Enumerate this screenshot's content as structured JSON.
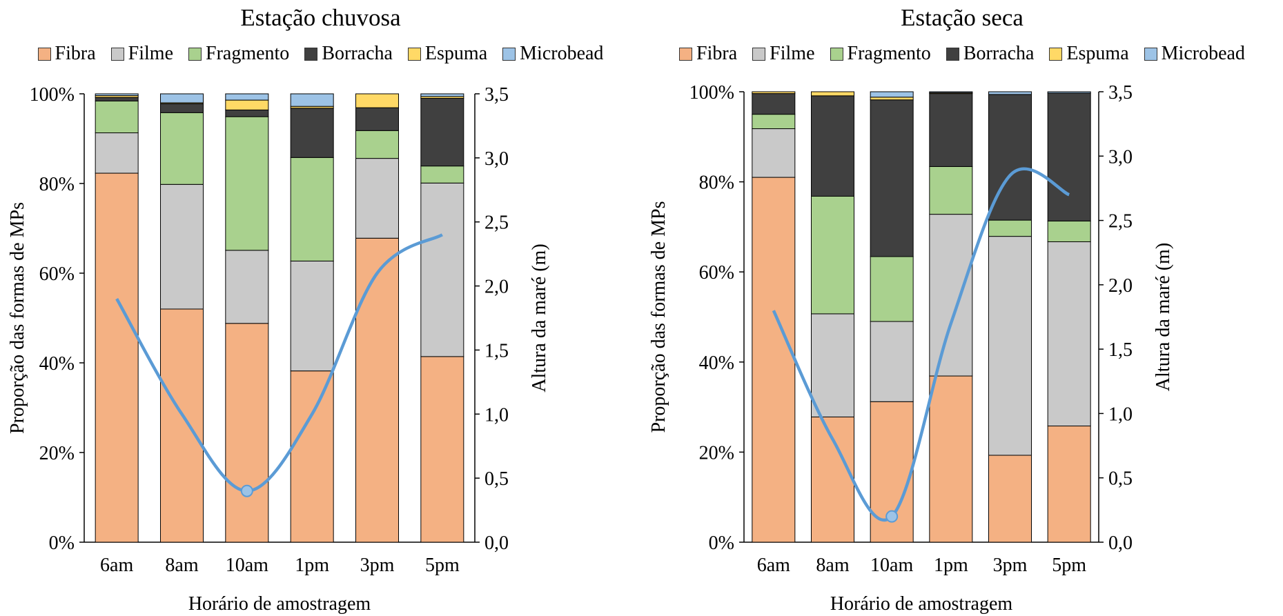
{
  "colors": {
    "Fibra": "#f4b183",
    "Filme": "#c9c9c9",
    "Fragmento": "#a9d18e",
    "Borracha": "#404040",
    "Espuma": "#ffd966",
    "Microbead": "#9dc3e6",
    "tide_line": "#5b9bd5",
    "tide_marker": "#9dc3e6"
  },
  "chart_data": [
    {
      "type": "bar",
      "stacked": true,
      "title": "Estação chuvosa",
      "xlabel": "Horário de amostragem",
      "ylabel": "Proporção das formas de MPs",
      "y2label": "Altura da maré (m)",
      "categories": [
        "6am",
        "8am",
        "10am",
        "1pm",
        "3pm",
        "5pm"
      ],
      "ylim": [
        0,
        100
      ],
      "yticks": [
        "0%",
        "20%",
        "40%",
        "60%",
        "80%",
        "100%"
      ],
      "y2lim": [
        0,
        3.5
      ],
      "y2ticks": [
        "0,0",
        "0,5",
        "1,0",
        "1,5",
        "2,0",
        "2,5",
        "3,0",
        "3,5"
      ],
      "legend_position": "top",
      "series": [
        {
          "name": "Fibra",
          "values": [
            82.3,
            52.0,
            48.8,
            38.2,
            67.8,
            41.4
          ]
        },
        {
          "name": "Filme",
          "values": [
            9.0,
            27.8,
            16.3,
            24.5,
            17.8,
            38.7
          ]
        },
        {
          "name": "Fragmento",
          "values": [
            7.1,
            16.0,
            29.8,
            23.1,
            6.2,
            3.8
          ]
        },
        {
          "name": "Borracha",
          "values": [
            0.8,
            2.0,
            1.5,
            11.0,
            5.1,
            15.1
          ]
        },
        {
          "name": "Espuma",
          "values": [
            0.4,
            0.2,
            2.2,
            0.4,
            3.1,
            0.4
          ]
        },
        {
          "name": "Microbead",
          "values": [
            0.4,
            2.0,
            1.4,
            2.8,
            0.0,
            0.6
          ]
        }
      ],
      "tide": {
        "x": [
          "6am",
          "8am",
          "10am",
          "1pm",
          "3pm",
          "5pm"
        ],
        "values": [
          1.9,
          1.0,
          0.4,
          1.0,
          2.1,
          2.4
        ],
        "highlight_index": 2
      }
    },
    {
      "type": "bar",
      "stacked": true,
      "title": "Estação seca",
      "xlabel": "Horário de amostragem",
      "ylabel": "Proporção das formas de MPs",
      "y2label": "Altura da maré (m)",
      "categories": [
        "6am",
        "8am",
        "10am",
        "1pm",
        "3pm",
        "5pm"
      ],
      "ylim": [
        0,
        100
      ],
      "yticks": [
        "0%",
        "20%",
        "40%",
        "60%",
        "80%",
        "100%"
      ],
      "y2lim": [
        0,
        3.5
      ],
      "y2ticks": [
        "0,0",
        "0,5",
        "1,0",
        "1,5",
        "2,0",
        "2,5",
        "3,0",
        "3,5"
      ],
      "legend_position": "top",
      "series": [
        {
          "name": "Fibra",
          "values": [
            81.0,
            27.8,
            31.2,
            36.9,
            19.3,
            25.8
          ]
        },
        {
          "name": "Filme",
          "values": [
            10.8,
            22.9,
            17.8,
            35.9,
            48.6,
            40.9
          ]
        },
        {
          "name": "Fragmento",
          "values": [
            3.2,
            26.1,
            14.4,
            10.6,
            3.6,
            4.6
          ]
        },
        {
          "name": "Borracha",
          "values": [
            4.6,
            22.3,
            34.8,
            16.2,
            27.9,
            28.4
          ]
        },
        {
          "name": "Espuma",
          "values": [
            0.4,
            0.9,
            0.6,
            0.2,
            0.0,
            0.0
          ]
        },
        {
          "name": "Microbead",
          "values": [
            0.0,
            0.0,
            1.2,
            0.2,
            0.6,
            0.3
          ]
        }
      ],
      "tide": {
        "x": [
          "6am",
          "8am",
          "10am",
          "1pm",
          "3pm",
          "5pm"
        ],
        "values": [
          1.8,
          0.8,
          0.2,
          1.7,
          2.85,
          2.7
        ],
        "highlight_index": 2
      }
    }
  ]
}
